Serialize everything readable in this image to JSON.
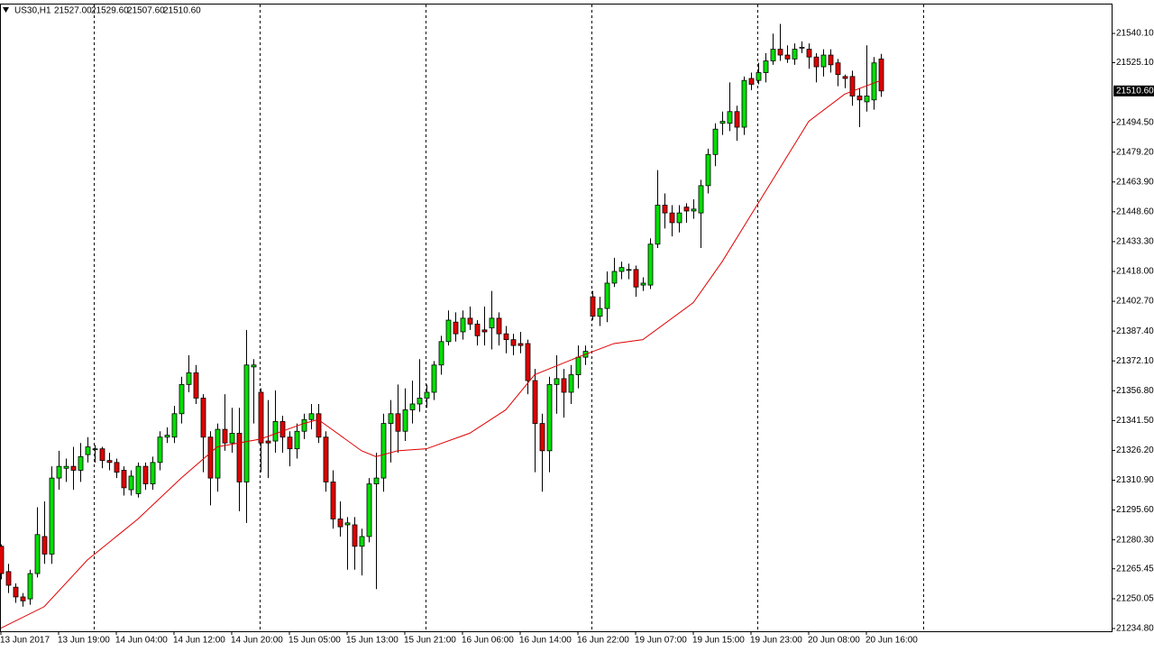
{
  "chart_data": {
    "type": "candlestick",
    "symbol": "US30,H1",
    "header_labels": [
      "21527.00",
      "21529.60",
      "21507.60",
      "21510.60"
    ],
    "up_color": "#00e000",
    "down_color": "#e00000",
    "ylim": [
      21233.4,
      21555.4
    ],
    "yticks": [
      {
        "value": 21234.8,
        "label": "21234.80"
      },
      {
        "value": 21250.05,
        "label": "21250.05"
      },
      {
        "value": 21265.45,
        "label": "21265.45"
      },
      {
        "value": 21280.3,
        "label": "21280.30"
      },
      {
        "value": 21295.6,
        "label": "21295.60"
      },
      {
        "value": 21310.9,
        "label": "21310.90"
      },
      {
        "value": 21326.2,
        "label": "21326.20"
      },
      {
        "value": 21341.5,
        "label": "21341.50"
      },
      {
        "value": 21356.8,
        "label": "21356.80"
      },
      {
        "value": 21372.1,
        "label": "21372.10"
      },
      {
        "value": 21387.4,
        "label": "21387.40"
      },
      {
        "value": 21402.7,
        "label": "21402.70"
      },
      {
        "value": 21418,
        "label": "21418.00"
      },
      {
        "value": 21433.3,
        "label": "21433.30"
      },
      {
        "value": 21448.6,
        "label": "21448.60"
      },
      {
        "value": 21463.9,
        "label": "21463.90"
      },
      {
        "value": 21479.2,
        "label": "21479.20"
      },
      {
        "value": 21494.5,
        "label": "21494.50"
      },
      {
        "value": 21525.1,
        "label": "21525.10"
      },
      {
        "value": 21540.1,
        "label": "21540.10"
      }
    ],
    "last_price": {
      "value": 21510.6,
      "label": "21510.60"
    },
    "categories": [
      "13 Jun 2017",
      null,
      null,
      null,
      null,
      null,
      null,
      null,
      "13 Jun 19:00",
      null,
      null,
      null,
      null,
      null,
      null,
      null,
      "14 Jun 04:00",
      null,
      null,
      null,
      null,
      null,
      null,
      null,
      "14 Jun 12:00",
      null,
      null,
      null,
      null,
      null,
      null,
      null,
      "14 Jun 20:00",
      null,
      null,
      null,
      null,
      null,
      null,
      null,
      "15 Jun 05:00",
      null,
      null,
      null,
      null,
      null,
      null,
      null,
      "15 Jun 13:00",
      null,
      null,
      null,
      null,
      null,
      null,
      null,
      "15 Jun 21:00",
      null,
      null,
      null,
      null,
      null,
      null,
      null,
      "16 Jun 06:00",
      null,
      null,
      null,
      null,
      null,
      null,
      null,
      "16 Jun 14:00",
      null,
      null,
      null,
      null,
      null,
      null,
      null,
      "16 Jun 22:00",
      null,
      null,
      null,
      null,
      null,
      null,
      null,
      "19 Jun 07:00",
      null,
      null,
      null,
      null,
      null,
      null,
      null,
      "19 Jun 15:00",
      null,
      null,
      null,
      null,
      null,
      null,
      null,
      "19 Jun 23:00",
      null,
      null,
      null,
      null,
      null,
      null,
      null,
      "20 Jun 08:00",
      null,
      null,
      null,
      null,
      null,
      null,
      null,
      "20 Jun 16:00",
      null,
      null
    ],
    "open": [
      21277,
      21264,
      21256,
      21251,
      21250,
      21263,
      21282,
      21273,
      21312,
      21317,
      21318,
      21316,
      21324,
      21327,
      21327,
      21321,
      21320,
      21316,
      21306,
      21304,
      21318,
      21309,
      21320,
      21333,
      21333,
      21345,
      21360,
      21366,
      21353,
      21333,
      21312,
      21337,
      21330,
      21335,
      21310,
      21369,
      21356,
      21331,
      21331,
      21341,
      21333,
      21327,
      21336,
      21342,
      21345,
      21333,
      21310,
      21291,
      21288,
      21288,
      21277,
      21282,
      21309,
      21312,
      21340,
      21345,
      21336,
      21347,
      21350,
      21353,
      21356,
      21370,
      21382,
      21392,
      21387,
      21394,
      21391,
      21388,
      21389,
      21394,
      21386,
      21383,
      21381,
      21381,
      21362,
      21340,
      21326,
      21360,
      21363,
      21356,
      21365,
      21374,
      21405,
      21395,
      21399,
      21412,
      21418,
      21419,
      21419,
      21411,
      21411,
      21432,
      21452,
      21448,
      21443,
      21451,
      21449,
      21448,
      21462,
      21478,
      21494,
      21494,
      21500,
      21492,
      21517,
      21516,
      21520,
      21526,
      21532,
      21529,
      21527,
      21533,
      21532,
      21528,
      21523,
      21529,
      21525,
      21518,
      21518,
      21508,
      21505,
      21506,
      21527
    ],
    "high": [
      21278,
      21268,
      21258,
      21253,
      21265,
      21297,
      21300,
      21318,
      21326,
      21322,
      21328,
      21330,
      21333,
      21329,
      21328,
      21325,
      21322,
      21318,
      21316,
      21320,
      21320,
      21323,
      21336,
      21338,
      21349,
      21364,
      21375,
      21370,
      21355,
      21336,
      21340,
      21355,
      21348,
      21348,
      21388,
      21373,
      21358,
      21352,
      21357,
      21344,
      21336,
      21340,
      21345,
      21350,
      21350,
      21336,
      21316,
      21300,
      21292,
      21292,
      21286,
      21312,
      21325,
      21345,
      21352,
      21360,
      21358,
      21362,
      21373,
      21360,
      21372,
      21385,
      21398,
      21397,
      21398,
      21400,
      21393,
      21400,
      21408,
      21397,
      21390,
      21386,
      21387,
      21383,
      21368,
      21345,
      21364,
      21375,
      21368,
      21370,
      21380,
      21380,
      21408,
      21405,
      21418,
      21425,
      21423,
      21422,
      21421,
      21415,
      21435,
      21470,
      21458,
      21452,
      21452,
      21453,
      21455,
      21465,
      21481,
      21494,
      21500,
      21515,
      21503,
      21518,
      21520,
      21525,
      21530,
      21540,
      21545,
      21534,
      21535,
      21536,
      21535,
      21530,
      21532,
      21532,
      21527,
      21519,
      21521,
      21512,
      21534,
      21528,
      21529.6
    ],
    "low": [
      21260,
      21253,
      21248,
      21246,
      21247,
      21261,
      21268,
      21268,
      21306,
      21310,
      21306,
      21310,
      21320,
      21320,
      21317,
      21316,
      21312,
      21303,
      21303,
      21302,
      21306,
      21306,
      21316,
      21330,
      21330,
      21340,
      21356,
      21350,
      21315,
      21298,
      21305,
      21326,
      21325,
      21295,
      21289,
      21340,
      21315,
      21312,
      21325,
      21325,
      21318,
      21322,
      21332,
      21337,
      21330,
      21305,
      21286,
      21282,
      21265,
      21265,
      21262,
      21279,
      21255,
      21305,
      21320,
      21325,
      21331,
      21340,
      21346,
      21348,
      21352,
      21365,
      21380,
      21382,
      21383,
      21388,
      21380,
      21380,
      21378,
      21380,
      21376,
      21375,
      21376,
      21355,
      21315,
      21305,
      21315,
      21345,
      21343,
      21350,
      21358,
      21370,
      21393,
      21390,
      21392,
      21410,
      21414,
      21414,
      21405,
      21408,
      21409,
      21430,
      21440,
      21436,
      21438,
      21443,
      21445,
      21430,
      21458,
      21472,
      21488,
      21490,
      21485,
      21488,
      21511,
      21514,
      21515,
      21524,
      21526,
      21525,
      21524,
      21530,
      21522,
      21515,
      21518,
      21520,
      21513,
      21512,
      21503,
      21492,
      21500,
      21501,
      21507.6
    ],
    "close": [
      21263,
      21257,
      21251,
      21249,
      21263,
      21283,
      21273,
      21312,
      21318,
      21318,
      21316,
      21323,
      21328,
      21327,
      21321,
      21320,
      21315,
      21307,
      21313,
      21318,
      21309,
      21320,
      21333,
      21334,
      21345,
      21360,
      21366,
      21353,
      21333,
      21312,
      21337,
      21330,
      21335,
      21310,
      21370,
      21370,
      21330,
      21330,
      21341,
      21333,
      21327,
      21336,
      21342,
      21345,
      21333,
      21310,
      21291,
      21287,
      21289,
      21277,
      21282,
      21309,
      21312,
      21340,
      21345,
      21336,
      21347,
      21350,
      21353,
      21356,
      21370,
      21382,
      21393,
      21386,
      21394,
      21391,
      21385,
      21387,
      21394,
      21386,
      21383,
      21380,
      21380,
      21362,
      21340,
      21326,
      21360,
      21363,
      21356,
      21365,
      21374,
      21377,
      21395,
      21399,
      21412,
      21418,
      21420,
      21419,
      21410,
      21412,
      21432,
      21452,
      21448,
      21443,
      21448,
      21449,
      21450,
      21462,
      21478,
      21491,
      21495,
      21500,
      21492,
      21516,
      21514,
      21520,
      21526,
      21532,
      21529,
      21527,
      21532,
      21533,
      21528,
      21523,
      21529,
      21524,
      21519,
      21517,
      21508,
      21506,
      21508,
      21525,
      21510.6
    ],
    "ma": {
      "color": "#e00000",
      "x": [
        0,
        6,
        12,
        19,
        25,
        30,
        36,
        42,
        44,
        50,
        52,
        55,
        59,
        65,
        70,
        74,
        80,
        85,
        89,
        96,
        100,
        105,
        112,
        117,
        122
      ],
      "values": [
        21235,
        21246,
        21270,
        21291,
        21312,
        21328,
        21332,
        21340,
        21342,
        21326,
        21323,
        21326,
        21327,
        21335,
        21347,
        21365,
        21374,
        21381,
        21383,
        21402,
        21423,
        21453,
        21495,
        21509,
        21516
      ]
    }
  }
}
